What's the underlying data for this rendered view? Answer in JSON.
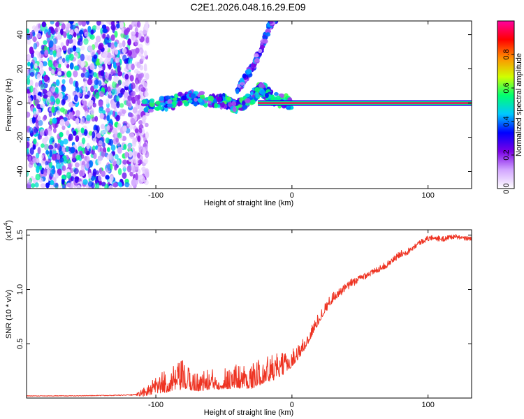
{
  "title": "C2E1.2026.048.16.29.E09",
  "chart_data": [
    {
      "type": "heatmap",
      "name": "spectrogram",
      "xlabel": "Height of straight line (km)",
      "ylabel": "Frequency (Hz)",
      "xlim": [
        -195,
        132
      ],
      "ylim": [
        -50,
        48
      ],
      "xticks": [
        -100,
        0,
        100
      ],
      "yticks": [
        -40,
        -20,
        0,
        20,
        40
      ],
      "colorbar": {
        "label": "Normalized spectral amplitude",
        "range": [
          0.0,
          1.0
        ],
        "ticks": [
          0.0,
          0.2,
          0.4,
          0.6,
          0.8
        ],
        "tick_labels": [
          "0.0",
          "0.2",
          "0.4",
          "0.6",
          "0.8"
        ],
        "colors": [
          "#ffffff",
          "#d2a6ff",
          "#7a00e6",
          "#0000ff",
          "#00c8ff",
          "#00ff70",
          "#d0ff00",
          "#ff9000",
          "#ff0000",
          "#ff00a0"
        ]
      },
      "features": {
        "noise_region_x": [
          -195,
          -110
        ],
        "carrier_line": {
          "frequency": 0,
          "x_start": -25,
          "x_end": 132,
          "amplitude": 0.95
        },
        "upper_branch": [
          {
            "x": -40,
            "f": 7
          },
          {
            "x": -35,
            "f": 14
          },
          {
            "x": -28,
            "f": 22
          },
          {
            "x": -22,
            "f": 33
          },
          {
            "x": -16,
            "f": 46
          },
          {
            "x": -12,
            "f": 50
          }
        ],
        "lower_branch": [
          {
            "x": -110,
            "f": -2
          },
          {
            "x": -90,
            "f": 0
          },
          {
            "x": -75,
            "f": 3
          },
          {
            "x": -60,
            "f": 2
          },
          {
            "x": -50,
            "f": 1
          },
          {
            "x": -40,
            "f": -2
          },
          {
            "x": -30,
            "f": 3
          },
          {
            "x": -22,
            "f": 8
          },
          {
            "x": -15,
            "f": 3
          },
          {
            "x": 0,
            "f": 0
          }
        ]
      }
    },
    {
      "type": "line",
      "name": "snr",
      "xlabel": "Height of straight line (km)",
      "ylabel": "SNR (10 * v/v)",
      "y_multiplier": "(x10",
      "y_multiplier_exp": "4",
      "y_multiplier_close": ")",
      "xlim": [
        -195,
        132
      ],
      "ylim": [
        0,
        1.55
      ],
      "xticks": [
        -100,
        0,
        100
      ],
      "yticks": [
        0.5,
        1.0,
        1.5
      ],
      "ytick_labels": [
        "0.5",
        "1.0",
        "1.5"
      ],
      "color": "#ee3322",
      "series": [
        {
          "name": "SNR",
          "x": [
            -195,
            -160,
            -130,
            -115,
            -106,
            -100,
            -95,
            -90,
            -85,
            -80,
            -75,
            -70,
            -65,
            -60,
            -55,
            -50,
            -45,
            -40,
            -35,
            -30,
            -25,
            -20,
            -15,
            -10,
            -5,
            0,
            5,
            10,
            15,
            20,
            25,
            30,
            35,
            40,
            45,
            50,
            55,
            60,
            65,
            70,
            75,
            80,
            85,
            90,
            95,
            100,
            105,
            110,
            115,
            120,
            125,
            132
          ],
          "y": [
            0.02,
            0.02,
            0.025,
            0.03,
            0.06,
            0.1,
            0.12,
            0.14,
            0.16,
            0.18,
            0.15,
            0.13,
            0.14,
            0.15,
            0.15,
            0.16,
            0.17,
            0.18,
            0.18,
            0.17,
            0.2,
            0.24,
            0.25,
            0.27,
            0.3,
            0.35,
            0.42,
            0.5,
            0.62,
            0.73,
            0.84,
            0.93,
            0.97,
            1.02,
            1.07,
            1.1,
            1.14,
            1.16,
            1.2,
            1.23,
            1.28,
            1.33,
            1.35,
            1.4,
            1.44,
            1.47,
            1.48,
            1.46,
            1.48,
            1.49,
            1.47,
            1.47
          ],
          "noise_amplitude": [
            0.003,
            0.003,
            0.004,
            0.006,
            0.06,
            0.1,
            0.12,
            0.14,
            0.15,
            0.17,
            0.13,
            0.11,
            0.12,
            0.12,
            0.12,
            0.13,
            0.14,
            0.15,
            0.15,
            0.14,
            0.15,
            0.16,
            0.16,
            0.14,
            0.12,
            0.1,
            0.09,
            0.08,
            0.07,
            0.06,
            0.05,
            0.05,
            0.04,
            0.04,
            0.04,
            0.035,
            0.035,
            0.03,
            0.03,
            0.03,
            0.03,
            0.03,
            0.03,
            0.025,
            0.025,
            0.025,
            0.025,
            0.025,
            0.025,
            0.02,
            0.02,
            0.02
          ]
        }
      ]
    }
  ]
}
